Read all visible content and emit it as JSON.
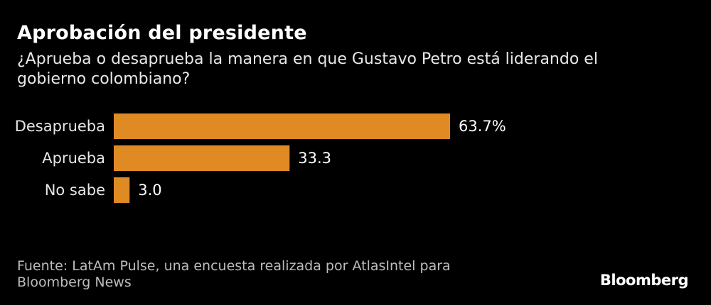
{
  "header": {
    "title": "Aprobación del presidente",
    "subtitle": "¿Aprueba o desaprueba la manera en que Gustavo Petro está liderando el gobierno colombiano?"
  },
  "chart_data": {
    "type": "bar",
    "orientation": "horizontal",
    "categories": [
      "Desaprueba",
      "Aprueba",
      "No sabe"
    ],
    "values": [
      63.7,
      33.3,
      3.0
    ],
    "value_labels": [
      "63.7%",
      "33.3",
      "3.0"
    ],
    "title": "Aprobación del presidente",
    "subtitle": "¿Aprueba o desaprueba la manera en que Gustavo Petro está liderando el gobierno colombiano?",
    "xlabel": "",
    "ylabel": "",
    "xlim": [
      0,
      63.7
    ],
    "grid": false,
    "bar_color": "#e08a23",
    "background_color": "#000000"
  },
  "footer": {
    "source": "Fuente: LatAm Pulse, una encuesta realizada por AtlasIntel para Bloomberg News",
    "logo": "Bloomberg"
  }
}
